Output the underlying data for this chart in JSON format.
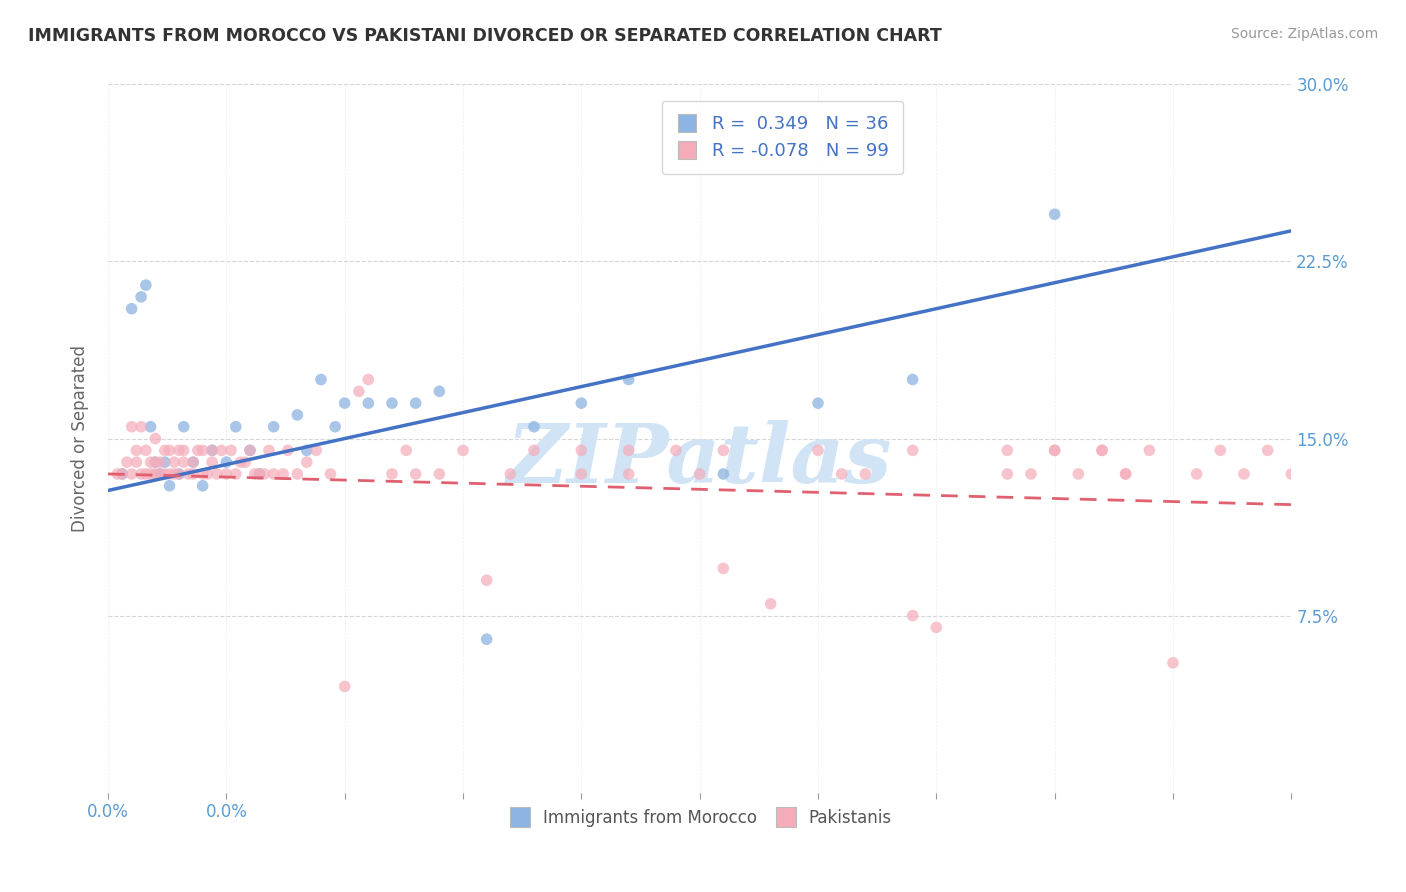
{
  "title": "IMMIGRANTS FROM MOROCCO VS PAKISTANI DIVORCED OR SEPARATED CORRELATION CHART",
  "source": "Source: ZipAtlas.com",
  "ylabel": "Divorced or Separated",
  "legend_labels": [
    "Immigrants from Morocco",
    "Pakistanis"
  ],
  "legend_r": [
    0.349,
    -0.078
  ],
  "legend_n": [
    36,
    99
  ],
  "xlim": [
    0.0,
    0.25
  ],
  "ylim": [
    0.0,
    0.3
  ],
  "xticks": [
    0.0,
    0.025,
    0.05,
    0.075,
    0.1,
    0.125,
    0.15,
    0.175,
    0.2,
    0.225,
    0.25
  ],
  "xticklabels_show": {
    "0.0": "0.0%"
  },
  "yticks": [
    0.075,
    0.15,
    0.225,
    0.3
  ],
  "yticklabels": [
    "7.5%",
    "15.0%",
    "22.5%",
    "30.0%"
  ],
  "color_blue": "#8DB4E2",
  "color_pink": "#F4ACBA",
  "color_blue_line": "#4472C4",
  "color_pink_line": "#E06070",
  "watermark_text": "ZIPatlas",
  "watermark_color": "#D0E4F5",
  "blue_line_start_y": 0.128,
  "blue_line_end_y": 0.238,
  "pink_line_start_y": 0.135,
  "pink_line_end_y": 0.122,
  "blue_x": [
    0.003,
    0.005,
    0.007,
    0.008,
    0.009,
    0.01,
    0.011,
    0.012,
    0.013,
    0.015,
    0.016,
    0.018,
    0.02,
    0.022,
    0.025,
    0.027,
    0.03,
    0.032,
    0.035,
    0.04,
    0.042,
    0.045,
    0.048,
    0.05,
    0.055,
    0.06,
    0.065,
    0.07,
    0.08,
    0.09,
    0.1,
    0.11,
    0.13,
    0.15,
    0.17,
    0.2
  ],
  "blue_y": [
    0.135,
    0.205,
    0.21,
    0.215,
    0.155,
    0.14,
    0.135,
    0.14,
    0.13,
    0.135,
    0.155,
    0.14,
    0.13,
    0.145,
    0.14,
    0.155,
    0.145,
    0.135,
    0.155,
    0.16,
    0.145,
    0.175,
    0.155,
    0.165,
    0.165,
    0.165,
    0.165,
    0.17,
    0.065,
    0.155,
    0.165,
    0.175,
    0.135,
    0.165,
    0.175,
    0.245
  ],
  "pink_x": [
    0.002,
    0.003,
    0.004,
    0.005,
    0.005,
    0.006,
    0.006,
    0.007,
    0.007,
    0.008,
    0.008,
    0.009,
    0.009,
    0.01,
    0.01,
    0.01,
    0.011,
    0.011,
    0.012,
    0.012,
    0.013,
    0.013,
    0.014,
    0.014,
    0.015,
    0.015,
    0.016,
    0.016,
    0.017,
    0.018,
    0.018,
    0.019,
    0.02,
    0.02,
    0.021,
    0.022,
    0.022,
    0.023,
    0.024,
    0.025,
    0.026,
    0.027,
    0.028,
    0.029,
    0.03,
    0.031,
    0.032,
    0.033,
    0.034,
    0.035,
    0.037,
    0.038,
    0.04,
    0.042,
    0.044,
    0.047,
    0.05,
    0.053,
    0.055,
    0.06,
    0.063,
    0.065,
    0.07,
    0.075,
    0.08,
    0.085,
    0.09,
    0.1,
    0.11,
    0.12,
    0.125,
    0.13,
    0.14,
    0.15,
    0.155,
    0.16,
    0.17,
    0.175,
    0.19,
    0.195,
    0.2,
    0.21,
    0.215,
    0.22,
    0.225,
    0.23,
    0.235,
    0.24,
    0.245,
    0.25,
    0.1,
    0.11,
    0.13,
    0.17,
    0.19,
    0.2,
    0.205,
    0.21,
    0.215
  ],
  "pink_y": [
    0.135,
    0.135,
    0.14,
    0.135,
    0.155,
    0.14,
    0.145,
    0.135,
    0.155,
    0.135,
    0.145,
    0.14,
    0.135,
    0.135,
    0.14,
    0.15,
    0.135,
    0.14,
    0.135,
    0.145,
    0.145,
    0.135,
    0.14,
    0.135,
    0.145,
    0.135,
    0.14,
    0.145,
    0.135,
    0.14,
    0.135,
    0.145,
    0.135,
    0.145,
    0.135,
    0.14,
    0.145,
    0.135,
    0.145,
    0.135,
    0.145,
    0.135,
    0.14,
    0.14,
    0.145,
    0.135,
    0.135,
    0.135,
    0.145,
    0.135,
    0.135,
    0.145,
    0.135,
    0.14,
    0.145,
    0.135,
    0.045,
    0.17,
    0.175,
    0.135,
    0.145,
    0.135,
    0.135,
    0.145,
    0.09,
    0.135,
    0.145,
    0.135,
    0.145,
    0.145,
    0.135,
    0.095,
    0.08,
    0.145,
    0.135,
    0.135,
    0.145,
    0.07,
    0.145,
    0.135,
    0.145,
    0.145,
    0.135,
    0.145,
    0.055,
    0.135,
    0.145,
    0.135,
    0.145,
    0.135,
    0.145,
    0.135,
    0.145,
    0.075,
    0.135,
    0.145,
    0.135,
    0.145,
    0.135
  ]
}
